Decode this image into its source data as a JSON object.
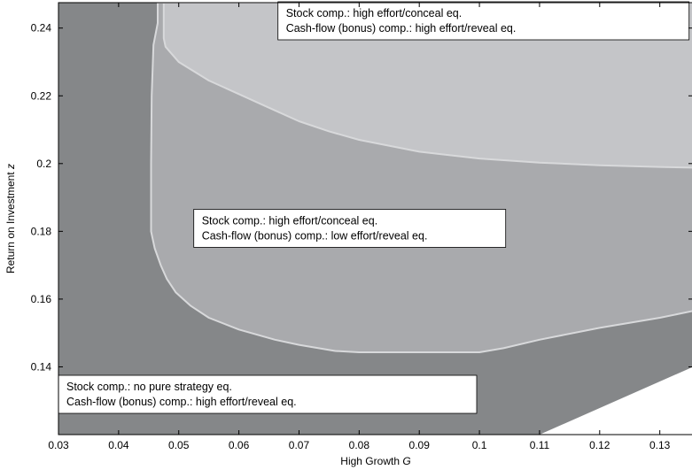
{
  "chart_data": {
    "type": "area",
    "title": "",
    "xlabel": "High Growth",
    "xlabel_var": "G",
    "ylabel": "Return on Investment",
    "ylabel_var": "z",
    "xlim": [
      0.03,
      0.1355
    ],
    "ylim": [
      0.12,
      0.2475
    ],
    "xticks": [
      "0.03",
      "0.04",
      "0.05",
      "0.06",
      "0.07",
      "0.08",
      "0.09",
      "0.1",
      "0.11",
      "0.12",
      "0.13"
    ],
    "yticks": [
      "0.14",
      "0.16",
      "0.18",
      "0.2",
      "0.22",
      "0.24"
    ],
    "grid": false,
    "colors": {
      "outer_region": "#858789",
      "mid_region": "#a9aaad",
      "top_region": "#c4c5c8",
      "light_edge": "#d8d9db",
      "blank_corner": "#ffffff"
    },
    "regions": [
      {
        "name": "no-pure-strategy",
        "fill": "#858789",
        "labels": [
          "Stock comp.: no pure strategy eq.",
          "Cash-flow (bonus) comp.: high effort/reveal eq."
        ],
        "polygon": [
          [
            0.03,
            0.12
          ],
          [
            0.03,
            0.2475
          ],
          [
            0.1355,
            0.2475
          ],
          [
            0.1355,
            0.12
          ]
        ]
      },
      {
        "name": "high-low",
        "fill": "#a9aaad",
        "labels": [
          "Stock comp.: high effort/conceal eq.",
          "Cash-flow (bonus) comp.: low effort/reveal eq."
        ],
        "polygon": [
          [
            0.0465,
            0.2475
          ],
          [
            0.0465,
            0.2415
          ],
          [
            0.0458,
            0.235
          ],
          [
            0.0455,
            0.22
          ],
          [
            0.0454,
            0.2
          ],
          [
            0.0454,
            0.18
          ],
          [
            0.046,
            0.175
          ],
          [
            0.047,
            0.17
          ],
          [
            0.048,
            0.166
          ],
          [
            0.0495,
            0.162
          ],
          [
            0.052,
            0.158
          ],
          [
            0.055,
            0.1545
          ],
          [
            0.06,
            0.151
          ],
          [
            0.066,
            0.148
          ],
          [
            0.07,
            0.1465
          ],
          [
            0.076,
            0.1447
          ],
          [
            0.08,
            0.1443
          ],
          [
            0.09,
            0.1443
          ],
          [
            0.1,
            0.1443
          ],
          [
            0.104,
            0.1455
          ],
          [
            0.11,
            0.148
          ],
          [
            0.12,
            0.1515
          ],
          [
            0.13,
            0.1545
          ],
          [
            0.1355,
            0.1565
          ],
          [
            0.1355,
            0.2475
          ]
        ]
      },
      {
        "name": "high-high",
        "fill": "#c4c5c8",
        "labels": [
          "Stock comp.: high effort/conceal eq.",
          "Cash-flow (bonus) comp.: high effort/reveal eq."
        ],
        "polygon": [
          [
            0.0475,
            0.2475
          ],
          [
            0.0475,
            0.237
          ],
          [
            0.0478,
            0.2345
          ],
          [
            0.05,
            0.23
          ],
          [
            0.055,
            0.2245
          ],
          [
            0.06,
            0.2205
          ],
          [
            0.065,
            0.2165
          ],
          [
            0.07,
            0.2125
          ],
          [
            0.075,
            0.2095
          ],
          [
            0.08,
            0.207
          ],
          [
            0.09,
            0.2035
          ],
          [
            0.1,
            0.2015
          ],
          [
            0.11,
            0.2003
          ],
          [
            0.12,
            0.1995
          ],
          [
            0.13,
            0.199
          ],
          [
            0.1355,
            0.1988
          ],
          [
            0.1355,
            0.2475
          ]
        ]
      },
      {
        "name": "blank-corner",
        "fill": "#ffffff",
        "labels": [],
        "polygon": [
          [
            0.11,
            0.12
          ],
          [
            0.1355,
            0.14
          ],
          [
            0.1355,
            0.12
          ]
        ]
      }
    ],
    "annotations": [
      {
        "name": "annotation-top",
        "lines": [
          "Stock comp.: high effort/conceal eq.",
          "Cash-flow (bonus) comp.: high effort/reveal eq."
        ],
        "anchor": [
          0.0665,
          0.2475
        ]
      },
      {
        "name": "annotation-middle",
        "lines": [
          "Stock comp.: high effort/conceal eq.",
          "Cash-flow (bonus) comp.: low effort/reveal eq."
        ],
        "anchor": [
          0.0525,
          0.1865
        ]
      },
      {
        "name": "annotation-bottom",
        "lines": [
          "Stock comp.: no pure strategy eq.",
          "Cash-flow (bonus) comp.: high effort/reveal eq."
        ],
        "anchor": [
          0.03,
          0.1375
        ]
      }
    ]
  }
}
